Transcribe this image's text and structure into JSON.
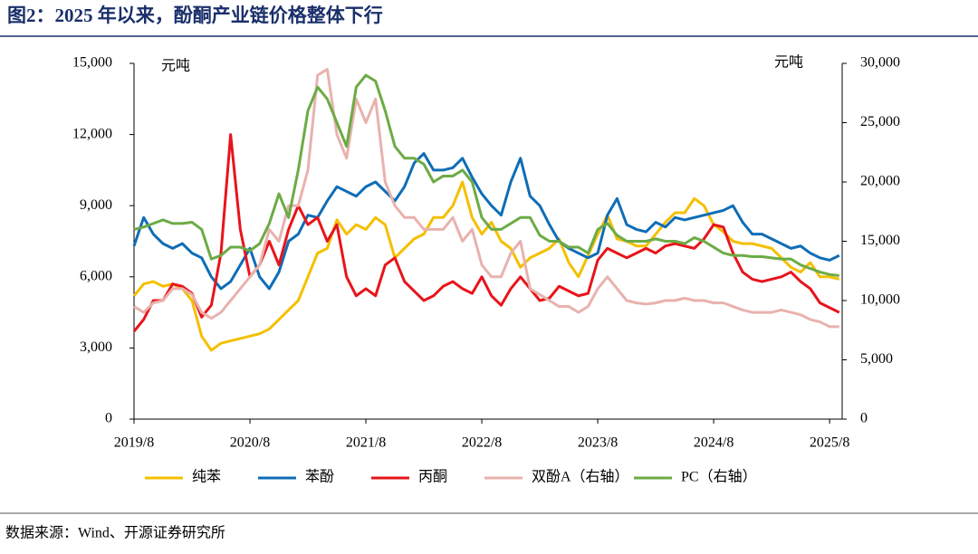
{
  "chart_data": {
    "type": "line",
    "title": "图2：2025 年以来，酚酮产业链价格整体下行",
    "y_label": "元吨",
    "y2_label": "元吨",
    "x": [
      "2019/8",
      "2019/9",
      "2019/10",
      "2019/11",
      "2019/12",
      "2020/1",
      "2020/2",
      "2020/3",
      "2020/4",
      "2020/5",
      "2020/6",
      "2020/7",
      "2020/8",
      "2020/9",
      "2020/10",
      "2020/11",
      "2020/12",
      "2021/1",
      "2021/2",
      "2021/3",
      "2021/4",
      "2021/5",
      "2021/6",
      "2021/7",
      "2021/8",
      "2021/9",
      "2021/10",
      "2021/11",
      "2021/12",
      "2022/1",
      "2022/2",
      "2022/3",
      "2022/4",
      "2022/5",
      "2022/6",
      "2022/7",
      "2022/8",
      "2022/9",
      "2022/10",
      "2022/11",
      "2022/12",
      "2023/1",
      "2023/2",
      "2023/3",
      "2023/4",
      "2023/5",
      "2023/6",
      "2023/7",
      "2023/8",
      "2023/9",
      "2023/10",
      "2023/11",
      "2023/12",
      "2024/1",
      "2024/2",
      "2024/3",
      "2024/4",
      "2024/5",
      "2024/6",
      "2024/7",
      "2024/8",
      "2024/9",
      "2024/10",
      "2024/11",
      "2024/12",
      "2025/1",
      "2025/2",
      "2025/3",
      "2025/4",
      "2025/5",
      "2025/6",
      "2025/7",
      "2025/8",
      "2025/9"
    ],
    "xticks": [
      "2019/8",
      "2020/8",
      "2021/8",
      "2022/8",
      "2023/8",
      "2024/8",
      "2025/8"
    ],
    "ylim": [
      0,
      15000
    ],
    "yticks": [
      0,
      {
        "value": 3000,
        "label": "3,000"
      },
      {
        "value": 6000,
        "label": "6,000"
      },
      {
        "value": 9000,
        "label": "9,000"
      },
      {
        "value": 12000,
        "label": "12,000"
      },
      {
        "value": 15000,
        "label": "15,000"
      }
    ],
    "y2lim": [
      0,
      30000
    ],
    "y2ticks": [
      0,
      {
        "value": 5000,
        "label": "5,000"
      },
      {
        "value": 10000,
        "label": "10,000"
      },
      {
        "value": 15000,
        "label": "15,000"
      },
      {
        "value": 20000,
        "label": "20,000"
      },
      {
        "value": 25000,
        "label": "25,000"
      },
      {
        "value": 30000,
        "label": "30,000"
      }
    ],
    "series": [
      {
        "name": "纯苯",
        "color": "#f5bf00",
        "values": [
          5200,
          5700,
          5800,
          5600,
          5700,
          5500,
          5000,
          3500,
          2900,
          3200,
          3300,
          3400,
          3500,
          3600,
          3800,
          4200,
          4600,
          5000,
          6000,
          7000,
          7200,
          8400,
          7800,
          8200,
          8000,
          8500,
          8200,
          6800,
          7200,
          7600,
          7800,
          8500,
          8500,
          9000,
          10000,
          8500,
          7800,
          8300,
          7500,
          7200,
          6400,
          6800,
          7000,
          7200,
          7600,
          6600,
          6000,
          6900,
          7800,
          8600,
          7600,
          7500,
          7300,
          7300,
          7800,
          8300,
          8700,
          8700,
          9300,
          9000,
          8200,
          7900,
          7500,
          7400,
          7400,
          7300,
          7200,
          6800,
          6400,
          6200,
          6600,
          6000,
          6000,
          5900
        ]
      },
      {
        "name": "苯酚",
        "color": "#0f6db6",
        "values": [
          7300,
          8500,
          7800,
          7400,
          7200,
          7400,
          7000,
          6800,
          6000,
          5500,
          5800,
          6500,
          7200,
          6000,
          5500,
          6200,
          7500,
          7800,
          8600,
          8500,
          9200,
          9800,
          9600,
          9400,
          9800,
          10000,
          9600,
          9200,
          9800,
          10800,
          11200,
          10500,
          10500,
          10600,
          11000,
          10200,
          9500,
          9000,
          8600,
          10000,
          11000,
          9400,
          9000,
          8200,
          7500,
          7200,
          7000,
          6800,
          7000,
          8600,
          9300,
          8200,
          8000,
          7900,
          8300,
          8100,
          8500,
          8400,
          8500,
          8600,
          8700,
          8800,
          9000,
          8300,
          7800,
          7800,
          7600,
          7400,
          7200,
          7300,
          7000,
          6800,
          6700,
          6900
        ]
      },
      {
        "name": "丙酮",
        "color": "#e8141b",
        "values": [
          3700,
          4200,
          5000,
          5000,
          5700,
          5600,
          5300,
          4300,
          4800,
          7000,
          12000,
          8000,
          6000,
          6500,
          7500,
          6500,
          8000,
          9000,
          8200,
          8500,
          7500,
          8200,
          6000,
          5200,
          5500,
          5200,
          6500,
          6800,
          5800,
          5400,
          5000,
          5200,
          5600,
          5800,
          5500,
          5300,
          6000,
          5200,
          4800,
          5500,
          6000,
          5500,
          5000,
          5100,
          5600,
          5400,
          5200,
          5300,
          6700,
          7200,
          7000,
          6800,
          7000,
          7200,
          7000,
          7300,
          7400,
          7300,
          7200,
          7600,
          8200,
          8100,
          7000,
          6200,
          5900,
          5800,
          5900,
          6000,
          6200,
          5800,
          5500,
          4900,
          4700,
          4500
        ]
      },
      {
        "name": "双酚A（右轴）",
        "color": "#e8b2ae",
        "axis": "y2",
        "values": [
          9500,
          9000,
          9800,
          10000,
          11000,
          11000,
          10500,
          9000,
          8500,
          9000,
          10000,
          11000,
          12000,
          13000,
          16000,
          15000,
          18000,
          18000,
          21000,
          29000,
          29500,
          24000,
          22000,
          27000,
          25000,
          27000,
          20000,
          18000,
          17000,
          17000,
          16000,
          16000,
          16000,
          17000,
          15000,
          16000,
          13000,
          12000,
          12000,
          14000,
          15000,
          11000,
          10500,
          10000,
          9500,
          9500,
          9000,
          9500,
          11000,
          12000,
          11000,
          10000,
          9800,
          9700,
          9800,
          10000,
          10000,
          10200,
          10000,
          10000,
          9800,
          9800,
          9500,
          9200,
          9000,
          9000,
          9000,
          9200,
          9000,
          8800,
          8400,
          8200,
          7800,
          7800
        ]
      },
      {
        "name": "PC（右轴）",
        "color": "#6cab45",
        "axis": "y2",
        "values": [
          16000,
          16200,
          16500,
          16800,
          16500,
          16500,
          16600,
          16000,
          13500,
          13800,
          14500,
          14500,
          14200,
          14800,
          16500,
          19000,
          17000,
          21000,
          26000,
          28000,
          27000,
          25000,
          23000,
          28000,
          29000,
          28500,
          26000,
          23000,
          22000,
          22000,
          21500,
          20000,
          20500,
          20500,
          21000,
          20000,
          17000,
          16000,
          16000,
          16500,
          17000,
          17000,
          15500,
          15000,
          15000,
          14500,
          14500,
          14000,
          16000,
          16500,
          15500,
          15000,
          15000,
          15000,
          15200,
          15000,
          15000,
          14800,
          15300,
          15000,
          14500,
          14000,
          13800,
          13800,
          13700,
          13700,
          13600,
          13500,
          13500,
          13000,
          12700,
          12400,
          12200,
          12100
        ]
      }
    ]
  },
  "footer": {
    "source": "数据来源：Wind、开源证券研究所"
  }
}
